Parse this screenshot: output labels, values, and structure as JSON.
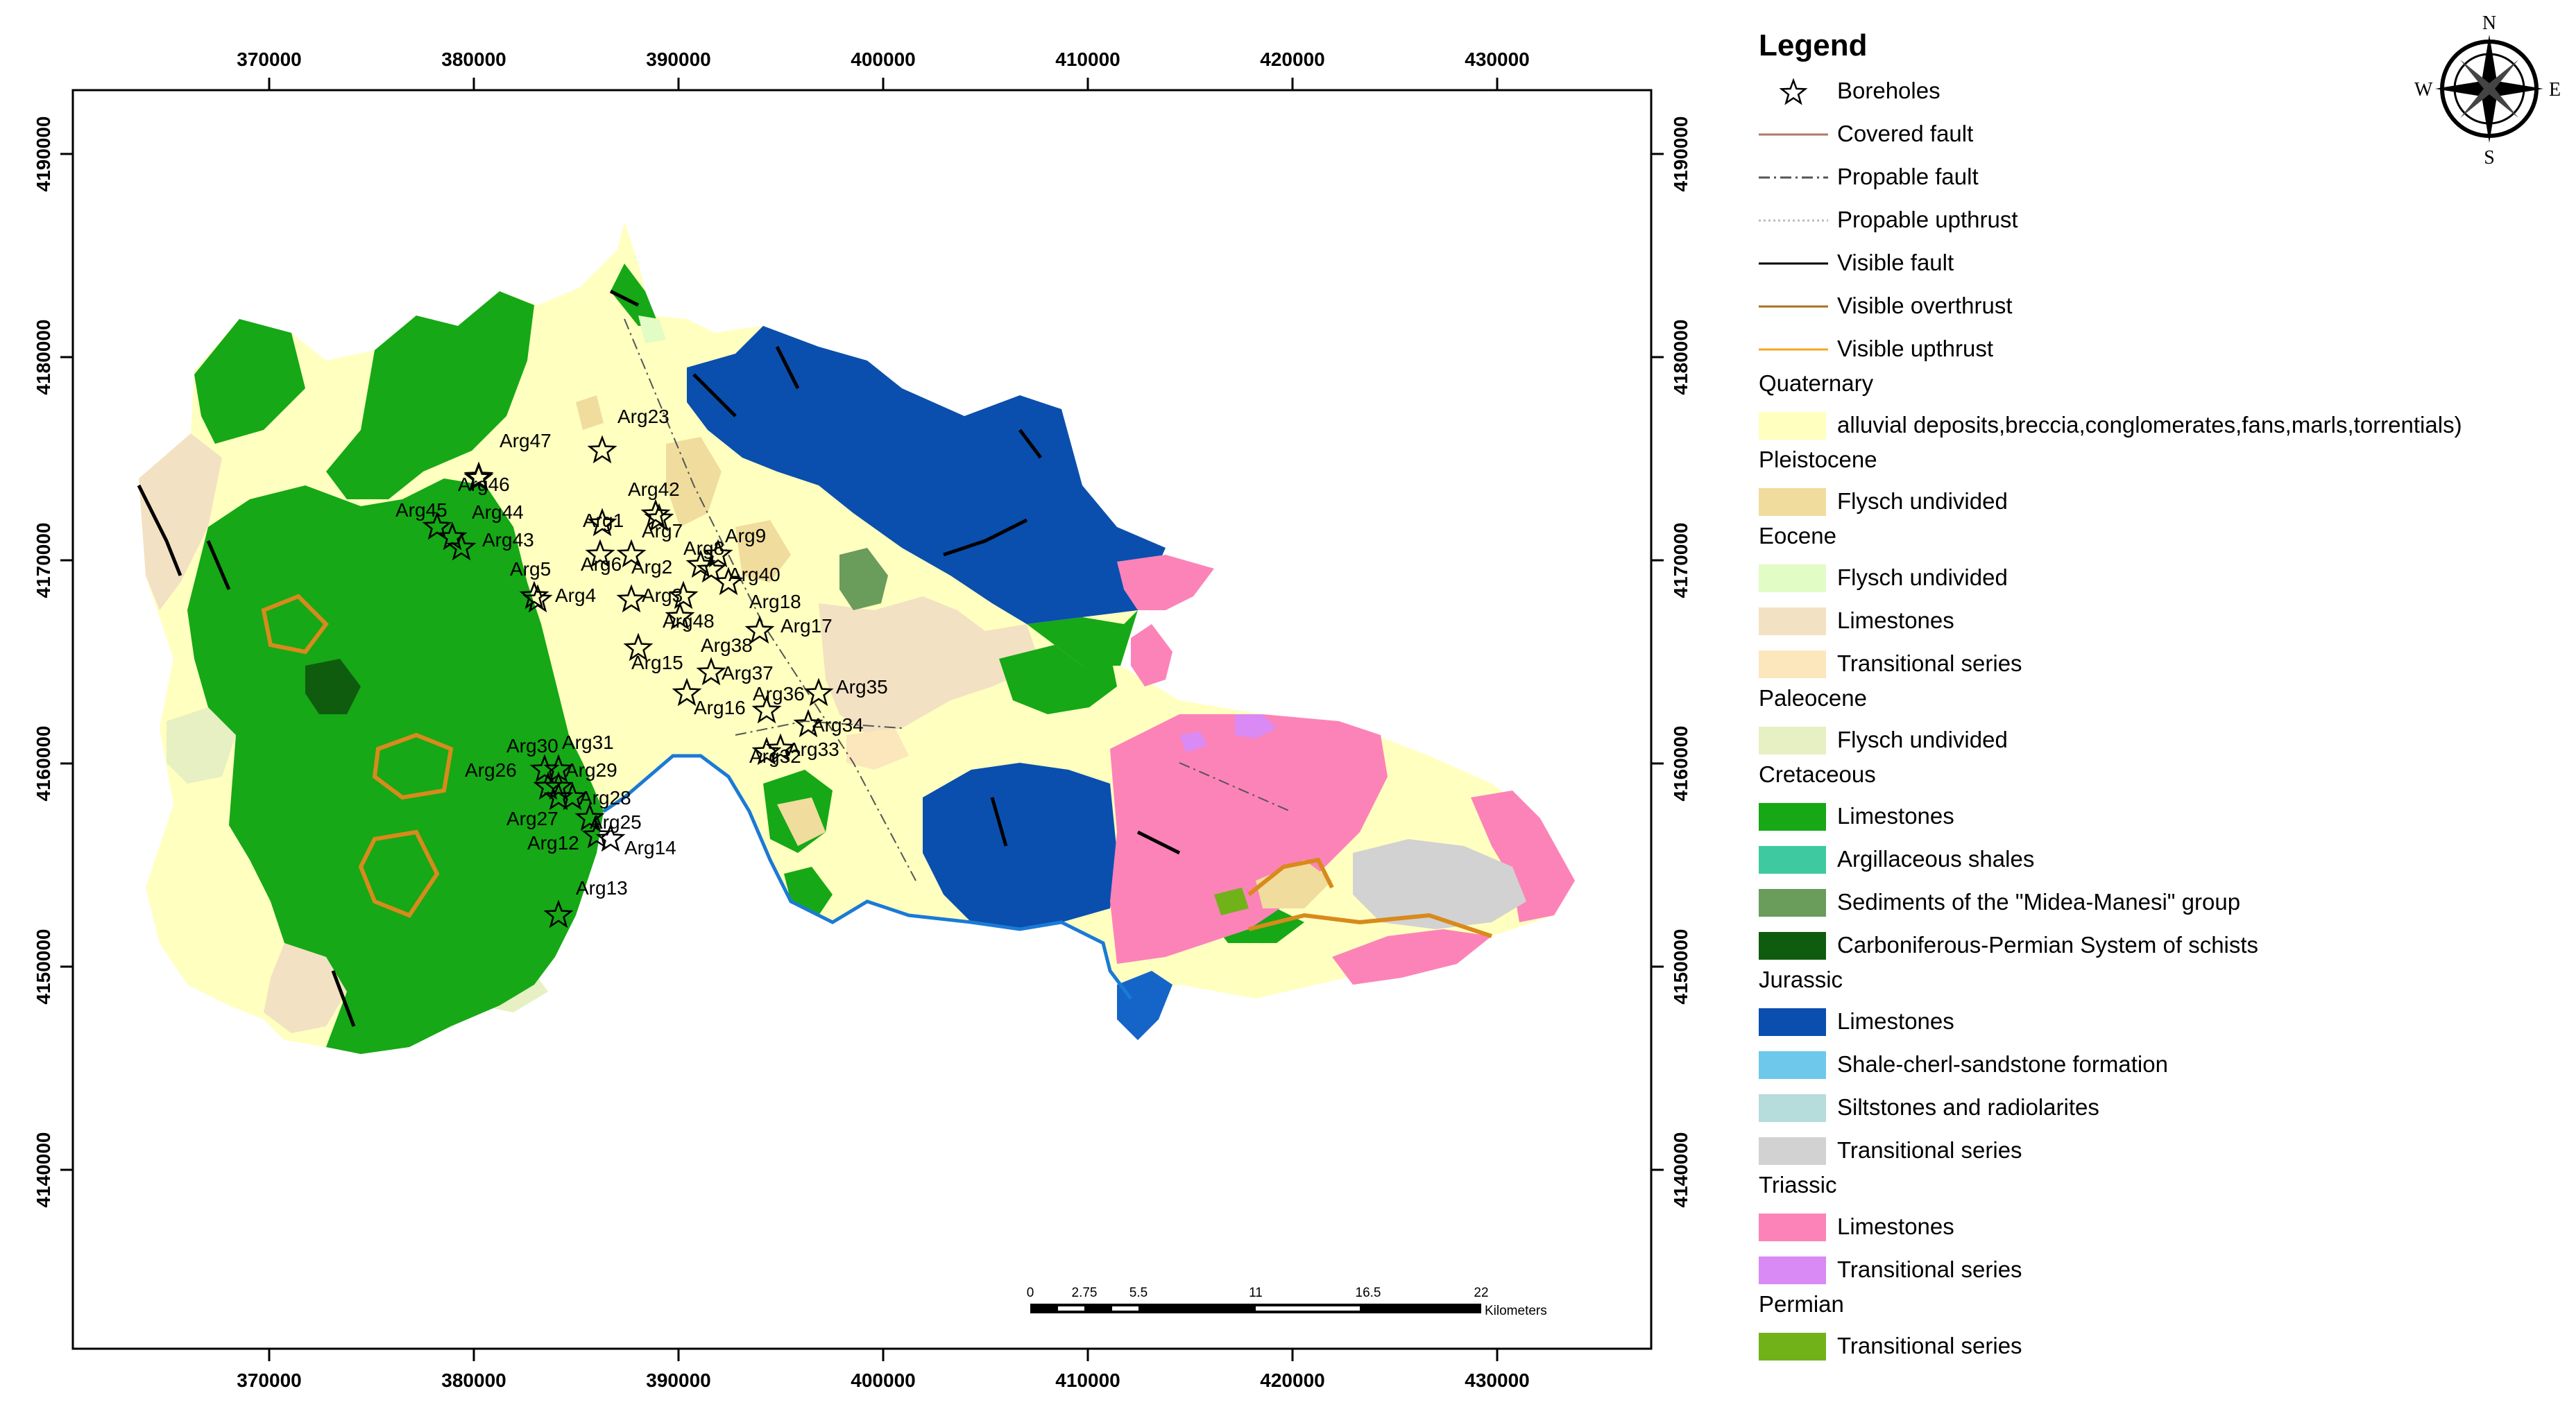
{
  "map": {
    "x_ticks": [
      "370000",
      "380000",
      "390000",
      "400000",
      "410000",
      "420000",
      "430000"
    ],
    "y_ticks": [
      "4190000",
      "4180000",
      "4170000",
      "4160000",
      "4150000",
      "4140000"
    ],
    "boreholes": [
      {
        "name": "Arg47"
      },
      {
        "name": "Arg23"
      },
      {
        "name": "Arg46"
      },
      {
        "name": "Arg45"
      },
      {
        "name": "Arg44"
      },
      {
        "name": "Arg43"
      },
      {
        "name": "Arg42"
      },
      {
        "name": "Arg1"
      },
      {
        "name": "Arg7"
      },
      {
        "name": "Arg9"
      },
      {
        "name": "Arg8"
      },
      {
        "name": "Arg5"
      },
      {
        "name": "Arg6"
      },
      {
        "name": "Arg4"
      },
      {
        "name": "Arg2"
      },
      {
        "name": "Arg40"
      },
      {
        "name": "Arg3"
      },
      {
        "name": "Arg18"
      },
      {
        "name": "Arg48"
      },
      {
        "name": "Arg17"
      },
      {
        "name": "Arg38"
      },
      {
        "name": "Arg15"
      },
      {
        "name": "Arg37"
      },
      {
        "name": "Arg16"
      },
      {
        "name": "Arg35"
      },
      {
        "name": "Arg36"
      },
      {
        "name": "Arg34"
      },
      {
        "name": "Arg33"
      },
      {
        "name": "Arg32"
      },
      {
        "name": "Arg30"
      },
      {
        "name": "Arg31"
      },
      {
        "name": "Arg26"
      },
      {
        "name": "Arg29"
      },
      {
        "name": "Arg28"
      },
      {
        "name": "Arg27"
      },
      {
        "name": "Arg25"
      },
      {
        "name": "Arg12"
      },
      {
        "name": "Arg14"
      },
      {
        "name": "Arg13"
      }
    ],
    "scale_bar": {
      "labels": [
        "0",
        "2.75",
        "5.5",
        "11",
        "16.5",
        "22"
      ],
      "unit": "Kilometers"
    },
    "compass": {
      "n": "N",
      "s": "S",
      "e": "E",
      "w": "W"
    }
  },
  "legend": {
    "title": "Legend",
    "symbols": [
      {
        "label": "Boreholes",
        "kind": "star"
      },
      {
        "label": "Covered fault",
        "kind": "line",
        "color": "#b0786a",
        "dash": ""
      },
      {
        "label": "Propable fault",
        "kind": "line",
        "color": "#555555",
        "dash": "16,6,3,6"
      },
      {
        "label": "Propable upthrust",
        "kind": "line",
        "color": "#bbbbbb",
        "dash": "3,4"
      },
      {
        "label": "Visible fault",
        "kind": "line",
        "color": "#000000",
        "dash": ""
      },
      {
        "label": "Visible overthrust",
        "kind": "line",
        "color": "#a8701e",
        "dash": ""
      },
      {
        "label": "Visible upthrust",
        "kind": "line",
        "color": "#f5a623",
        "dash": ""
      }
    ],
    "groups": [
      {
        "name": "Quaternary",
        "items": [
          {
            "label": "alluvial deposits,breccia,conglomerates,fans,marls,torrentials)",
            "color": "#ffffc0"
          }
        ]
      },
      {
        "name": "Pleistocene",
        "items": [
          {
            "label": "Flysch undivided",
            "color": "#f0dc9c"
          }
        ]
      },
      {
        "name": "Eocene",
        "items": [
          {
            "label": "Flysch undivided",
            "color": "#e1fcc4"
          },
          {
            "label": "Limestones",
            "color": "#f3e1c3"
          },
          {
            "label": "Transitional series",
            "color": "#fce6bb"
          }
        ]
      },
      {
        "name": "Paleocene",
        "items": [
          {
            "label": "Flysch undivided",
            "color": "#e6f0c2"
          }
        ]
      },
      {
        "name": "Cretaceous",
        "items": [
          {
            "label": "Limestones",
            "color": "#16a816"
          },
          {
            "label": "Argillaceous shales",
            "color": "#3fc9a0"
          },
          {
            "label": "Sediments of the \"Midea-Manesi\" group",
            "color": "#6a9c5c"
          },
          {
            "label": "Carboniferous-Permian System of schists",
            "color": "#0f5c0f"
          }
        ]
      },
      {
        "name": "Jurassic",
        "items": [
          {
            "label": "Limestones",
            "color": "#0a4fae"
          },
          {
            "label": "Shale-cherl-sandstone formation",
            "color": "#6ec8ec"
          },
          {
            "label": "Siltstones and radiolarites",
            "color": "#b6dcdc"
          },
          {
            "label": "Transitional series",
            "color": "#d2d2d2"
          }
        ]
      },
      {
        "name": "Triassic",
        "items": [
          {
            "label": "Limestones",
            "color": "#fc83b8"
          },
          {
            "label": "Transitional series",
            "color": "#d98af5"
          }
        ]
      },
      {
        "name": "Permian",
        "items": [
          {
            "label": "Transitional series",
            "color": "#71b21a"
          }
        ]
      }
    ]
  }
}
